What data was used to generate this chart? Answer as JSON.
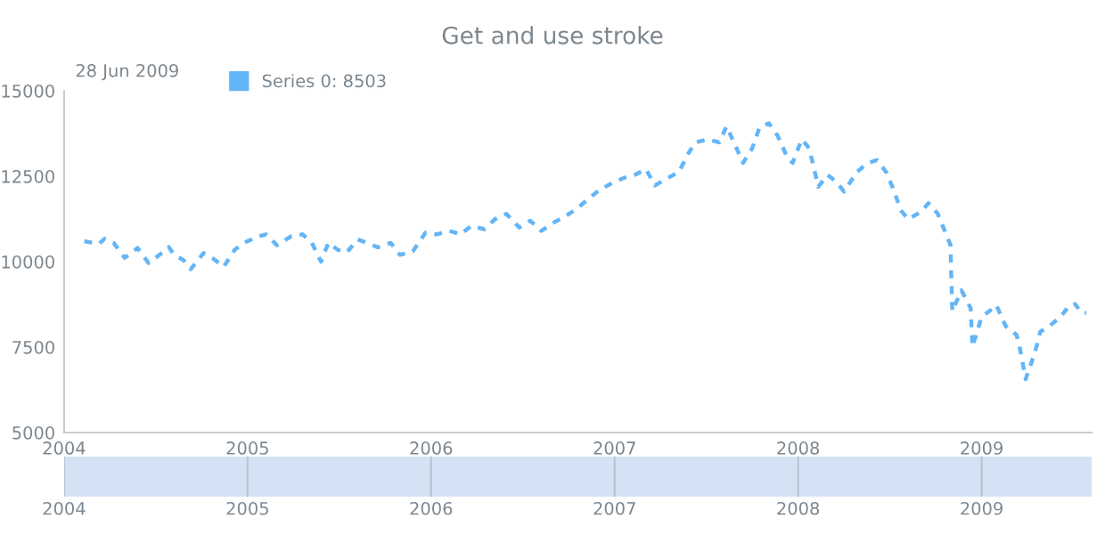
{
  "chart_data": {
    "type": "line",
    "title": "Get and use stroke",
    "annotations": [
      "28 Jun 2009"
    ],
    "x": [
      2004.11,
      2004.19,
      2004.22,
      2004.27,
      2004.33,
      2004.4,
      2004.46,
      2004.52,
      2004.57,
      2004.6,
      2004.65,
      2004.69,
      2004.76,
      2004.81,
      2004.87,
      2004.93,
      2004.98,
      2005.05,
      2005.1,
      2005.16,
      2005.24,
      2005.3,
      2005.35,
      2005.4,
      2005.44,
      2005.49,
      2005.54,
      2005.6,
      2005.65,
      2005.71,
      2005.78,
      2005.83,
      2005.9,
      2005.97,
      2006.03,
      2006.1,
      2006.16,
      2006.22,
      2006.29,
      2006.35,
      2006.41,
      2006.48,
      2006.54,
      2006.6,
      2006.67,
      2006.73,
      2006.79,
      2006.86,
      2006.92,
      2006.98,
      2007.05,
      2007.11,
      2007.17,
      2007.22,
      2007.29,
      2007.35,
      2007.4,
      2007.44,
      2007.51,
      2007.57,
      2007.61,
      2007.65,
      2007.7,
      2007.75,
      2007.79,
      2007.84,
      2007.89,
      2007.94,
      2007.97,
      2008.02,
      2008.06,
      2008.11,
      2008.16,
      2008.21,
      2008.25,
      2008.32,
      2008.38,
      2008.43,
      2008.48,
      2008.52,
      2008.56,
      2008.6,
      2008.67,
      2008.71,
      2008.76,
      2008.79,
      2008.83,
      2008.84,
      2008.89,
      2008.94,
      2008.95,
      2009.0,
      2009.05,
      2009.08,
      2009.13,
      2009.19,
      2009.21,
      2009.24,
      2009.29,
      2009.32,
      2009.37,
      2009.43,
      2009.48,
      2009.51,
      2009.54,
      2009.57
    ],
    "series": [
      {
        "name": "Series 0: 8503",
        "color": "#64b5f6",
        "values": [
          10600,
          10520,
          10670,
          10550,
          10110,
          10400,
          9960,
          10200,
          10430,
          10200,
          10050,
          9780,
          10250,
          10100,
          9850,
          10350,
          10550,
          10720,
          10800,
          10480,
          10750,
          10800,
          10550,
          10000,
          10550,
          10350,
          10270,
          10650,
          10550,
          10420,
          10550,
          10200,
          10300,
          10850,
          10800,
          10900,
          10800,
          11050,
          10950,
          11250,
          11400,
          11000,
          11200,
          10900,
          11150,
          11330,
          11530,
          11850,
          12110,
          12280,
          12450,
          12540,
          12710,
          12230,
          12450,
          12620,
          13150,
          13490,
          13580,
          13490,
          13960,
          13490,
          12890,
          13320,
          13930,
          14050,
          13670,
          13060,
          12890,
          13580,
          13320,
          12190,
          12540,
          12330,
          12050,
          12620,
          12890,
          12970,
          12620,
          12110,
          11500,
          11240,
          11460,
          11710,
          11410,
          11020,
          10490,
          8550,
          9160,
          8640,
          7510,
          8380,
          8590,
          8730,
          8120,
          7860,
          7430,
          6560,
          7340,
          7950,
          8120,
          8380,
          8730,
          8760,
          8520,
          8500
        ]
      }
    ],
    "line_style": "dashed",
    "legend": "top left",
    "xlim": [
      2004,
      2009.6
    ],
    "ylim": [
      5000,
      15000
    ],
    "xticks": [
      2004,
      2005,
      2006,
      2007,
      2008,
      2009
    ],
    "x2lim": [
      2004,
      2009.6
    ],
    "x2ticks": [
      2004,
      2005,
      2006,
      2007,
      2008,
      2009
    ],
    "yticks": [
      5000,
      7500,
      10000,
      12500,
      15000
    ]
  }
}
